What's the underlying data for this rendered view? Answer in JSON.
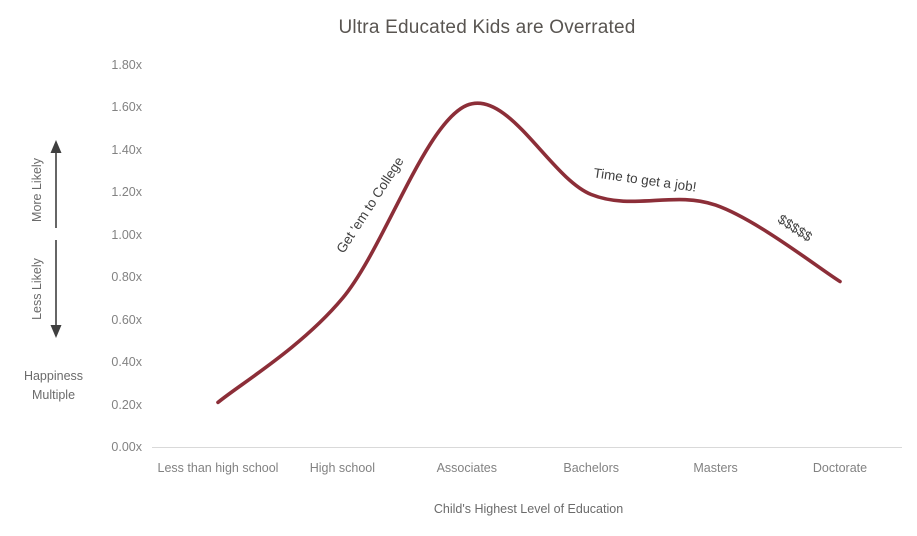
{
  "title": "Ultra Educated Kids are Overrated",
  "colors": {
    "line": "#8c2e38",
    "axis_line": "#d9d9d9",
    "tick_text": "#828282",
    "title_text": "#595551",
    "annotation_text": "#3f3f3f",
    "arrow": "#3f3f3f",
    "side_label_text": "#6b6b6b"
  },
  "y_axis": {
    "arrow_up_label": "More Likely",
    "arrow_down_label": "Less Likely",
    "axis_label": "Happiness Multiple"
  },
  "x_axis": {
    "axis_label": "Child's Highest Level of Education"
  },
  "chart_data": {
    "type": "line",
    "title": "Ultra Educated Kids are Overrated",
    "xlabel": "Child's Highest Level of Education",
    "ylabel": "Happiness Multiple",
    "categories": [
      "Less than high school",
      "High school",
      "Associates",
      "Bachelors",
      "Masters",
      "Doctorate"
    ],
    "values": [
      0.21,
      0.7,
      1.61,
      1.19,
      1.14,
      0.78
    ],
    "y_ticks": [
      "0.00x",
      "0.20x",
      "0.40x",
      "0.60x",
      "0.80x",
      "1.00x",
      "1.20x",
      "1.40x",
      "1.60x",
      "1.80x"
    ],
    "y_tick_step": 0.2,
    "ylim": [
      0,
      1.8
    ],
    "grid": false,
    "legend": false,
    "smoothed": true,
    "annotations": [
      {
        "text": "Get 'em to College",
        "x": 1.22,
        "y": 1.14,
        "rotate": -57
      },
      {
        "text": "Time to get a job!",
        "x": 3.43,
        "y": 1.26,
        "rotate": 8
      },
      {
        "text": "$$$$$",
        "x": 4.64,
        "y": 1.03,
        "rotate": 33
      }
    ]
  }
}
